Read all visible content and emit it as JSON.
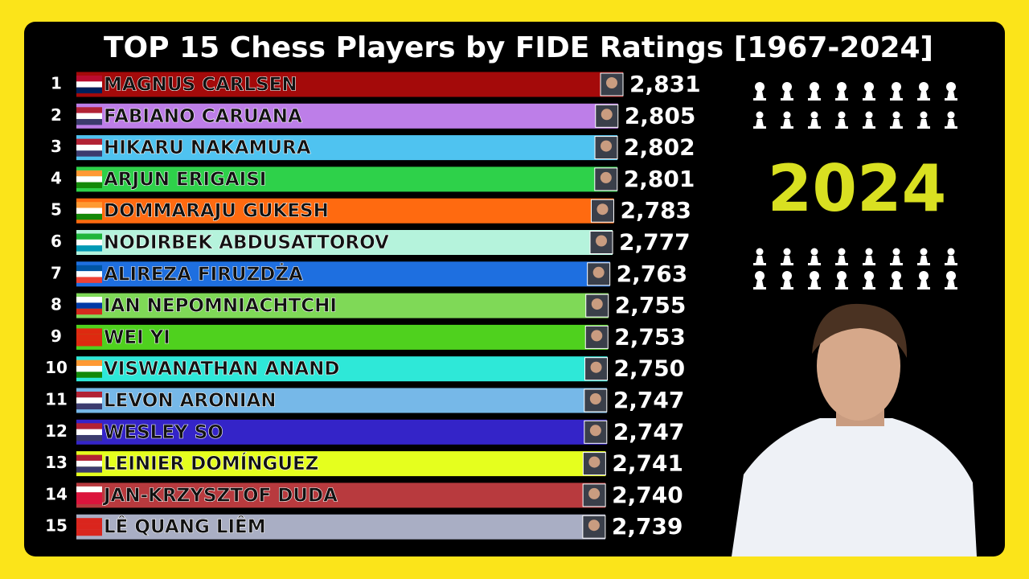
{
  "chart_data": {
    "type": "bar",
    "orientation": "horizontal",
    "title": "TOP 15 Chess Players by FIDE Ratings [1967-2024]",
    "annotation": "2024",
    "ranks": [
      "1",
      "2",
      "3",
      "4",
      "5",
      "6",
      "7",
      "8",
      "9",
      "10",
      "11",
      "12",
      "13",
      "14",
      "15"
    ],
    "categories": [
      "MAGNUS CARLSEN",
      "FABIANO CARUANA",
      "HIKARU NAKAMURA",
      "ARJUN ERIGAISI",
      "DOMMARAJU GUKESH",
      "NODIRBEK ABDUSATTOROV",
      "ALIREZA FIRUZDŻA",
      "IAN NEPOMNIACHTCHI",
      "WEI YI",
      "VISWANATHAN ANAND",
      "LEVON ARONIAN",
      "WESLEY SO",
      "LEINIER DOMÍNGUEZ",
      "JAN-KRZYSZTOF DUDA",
      "LÊ QUANG LIÊM"
    ],
    "values": [
      2831,
      2805,
      2802,
      2801,
      2783,
      2777,
      2763,
      2755,
      2753,
      2750,
      2747,
      2747,
      2741,
      2740,
      2739
    ],
    "value_labels": [
      "2,831",
      "2,805",
      "2,802",
      "2,801",
      "2,783",
      "2,777",
      "2,763",
      "2,755",
      "2,753",
      "2,750",
      "2,747",
      "2,747",
      "2,741",
      "2,740",
      "2,739"
    ],
    "colors": [
      "#a40a0a",
      "#bd7ee8",
      "#4fc3f0",
      "#2ed14a",
      "#ff6a10",
      "#b5f3dc",
      "#1e6fe0",
      "#7fd957",
      "#4fd11e",
      "#2ee8d8",
      "#76b8e8",
      "#3424c8",
      "#e5ff1e",
      "#b83a3e",
      "#a9aec4"
    ]
  }
}
